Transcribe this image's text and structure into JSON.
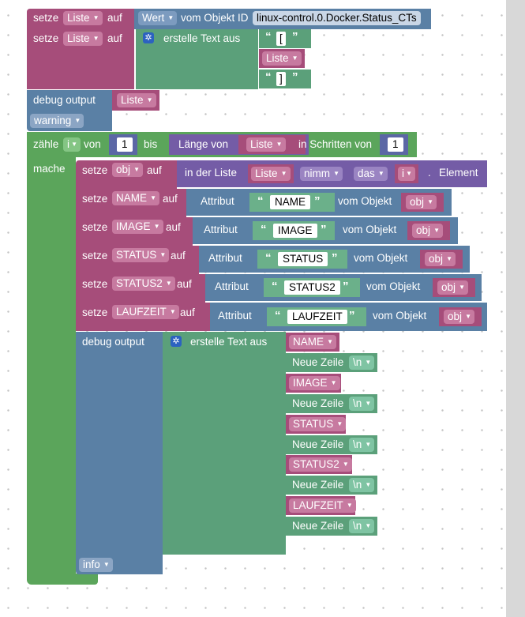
{
  "block1": {
    "set": "setze",
    "var": "Liste",
    "to": "auf",
    "value_field": "Wert",
    "from_object": "vom Objekt ID",
    "object_id": "linux-control.0.Docker.Status_CTs"
  },
  "block2": {
    "set": "setze",
    "var": "Liste",
    "to": "auf",
    "create_text": "erstelle Text aus",
    "parts": [
      "[",
      "Liste",
      "]"
    ]
  },
  "block3": {
    "label": "debug output",
    "value": "Liste",
    "level": "warning"
  },
  "loop": {
    "count": "zähle",
    "var": "i",
    "from": "von",
    "start": "1",
    "to": "bis",
    "length_of": "Länge von",
    "list_var": "Liste",
    "step_label": "in Schritten von",
    "step": "1",
    "do": "mache"
  },
  "inner": [
    {
      "set": "setze",
      "var": "obj",
      "to": "auf",
      "in_list": "in der Liste",
      "list_var": "Liste",
      "op": "nimm",
      "which": "das",
      "index_var": "i",
      "dot": ".",
      "element": "Element"
    },
    {
      "set": "setze",
      "var": "NAME",
      "to": "auf",
      "attr": "Attribut",
      "attr_name": "NAME",
      "from_obj": "vom Objekt",
      "obj_var": "obj"
    },
    {
      "set": "setze",
      "var": "IMAGE",
      "to": "auf",
      "attr": "Attribut",
      "attr_name": "IMAGE",
      "from_obj": "vom Objekt",
      "obj_var": "obj"
    },
    {
      "set": "setze",
      "var": "STATUS",
      "to": "auf",
      "attr": "Attribut",
      "attr_name": "STATUS",
      "from_obj": "vom Objekt",
      "obj_var": "obj"
    },
    {
      "set": "setze",
      "var": "STATUS2",
      "to": "auf",
      "attr": "Attribut",
      "attr_name": "STATUS2",
      "from_obj": "vom Objekt",
      "obj_var": "obj"
    },
    {
      "set": "setze",
      "var": "LAUFZEIT",
      "to": "auf",
      "attr": "Attribut",
      "attr_name": "LAUFZEIT",
      "from_obj": "vom Objekt",
      "obj_var": "obj"
    }
  ],
  "debug2": {
    "label": "debug output",
    "create_text": "erstelle Text aus",
    "level": "info",
    "items": [
      "NAME",
      "Neue Zeile",
      "IMAGE",
      "Neue Zeile",
      "STATUS",
      "Neue Zeile",
      "STATUS2",
      "Neue Zeile",
      "LAUFZEIT",
      "Neue Zeile"
    ],
    "newline_value": "\\n"
  }
}
